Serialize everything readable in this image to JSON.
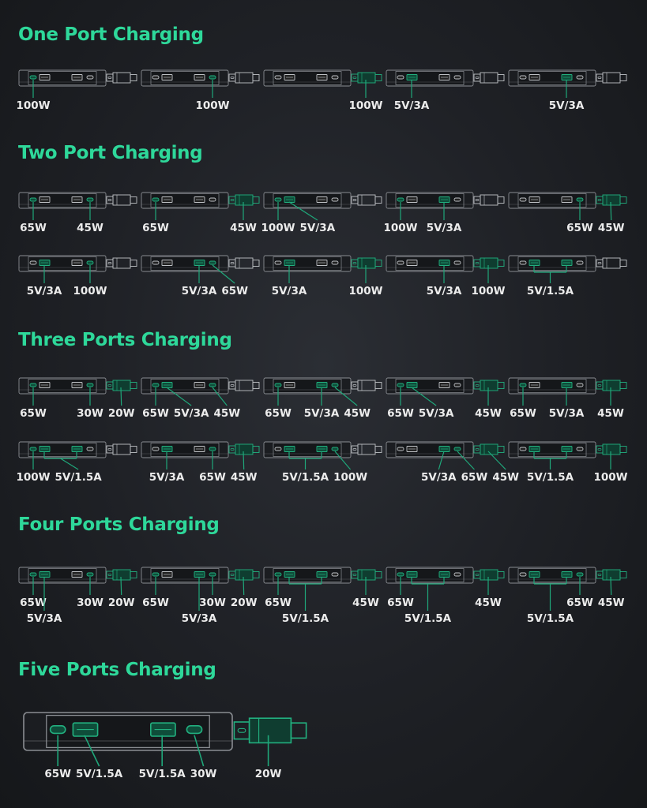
{
  "colors": {
    "title": "#2ed89a",
    "active_port": "#22b07f",
    "leader_line": "#1fa77a",
    "device_outline": "#8a8d92",
    "label": "#ececec"
  },
  "port_order": [
    "usb-c-1",
    "usb-a-1",
    "usb-a-2",
    "usb-c-2",
    "cable"
  ],
  "sections": [
    {
      "title": "One Port Charging",
      "rows": [
        [
          {
            "active": [
              "usb-c-1"
            ],
            "labels": [
              {
                "text": "100W",
                "ports": [
                  "usb-c-1"
                ]
              }
            ]
          },
          {
            "active": [
              "usb-c-2"
            ],
            "labels": [
              {
                "text": "100W",
                "ports": [
                  "usb-c-2"
                ]
              }
            ]
          },
          {
            "active": [
              "cable"
            ],
            "labels": [
              {
                "text": "100W",
                "ports": [
                  "cable"
                ]
              }
            ]
          },
          {
            "active": [
              "usb-a-1"
            ],
            "labels": [
              {
                "text": "5V/3A",
                "ports": [
                  "usb-a-1"
                ]
              }
            ]
          },
          {
            "active": [
              "usb-a-2"
            ],
            "labels": [
              {
                "text": "5V/3A",
                "ports": [
                  "usb-a-2"
                ]
              }
            ]
          }
        ]
      ]
    },
    {
      "title": "Two Port Charging",
      "rows": [
        [
          {
            "active": [
              "usb-c-1",
              "usb-c-2"
            ],
            "labels": [
              {
                "text": "65W",
                "ports": [
                  "usb-c-1"
                ]
              },
              {
                "text": "45W",
                "ports": [
                  "usb-c-2"
                ]
              }
            ]
          },
          {
            "active": [
              "usb-c-1",
              "cable"
            ],
            "labels": [
              {
                "text": "65W",
                "ports": [
                  "usb-c-1"
                ]
              },
              {
                "text": "45W",
                "ports": [
                  "cable"
                ]
              }
            ]
          },
          {
            "active": [
              "usb-c-1",
              "usb-a-1"
            ],
            "labels": [
              {
                "text": "100W",
                "ports": [
                  "usb-c-1"
                ]
              },
              {
                "text": "5V/3A",
                "ports": [
                  "usb-a-1"
                ]
              }
            ]
          },
          {
            "active": [
              "usb-c-1",
              "usb-a-2"
            ],
            "labels": [
              {
                "text": "100W",
                "ports": [
                  "usb-c-1"
                ]
              },
              {
                "text": "5V/3A",
                "ports": [
                  "usb-a-2"
                ]
              }
            ]
          },
          {
            "active": [
              "usb-c-2",
              "cable"
            ],
            "labels": [
              {
                "text": "65W",
                "ports": [
                  "usb-c-2"
                ]
              },
              {
                "text": "45W",
                "ports": [
                  "cable"
                ]
              }
            ]
          }
        ],
        [
          {
            "active": [
              "usb-a-1",
              "usb-c-2"
            ],
            "labels": [
              {
                "text": "5V/3A",
                "ports": [
                  "usb-a-1"
                ]
              },
              {
                "text": "100W",
                "ports": [
                  "usb-c-2"
                ]
              }
            ]
          },
          {
            "active": [
              "usb-a-2",
              "usb-c-2"
            ],
            "labels": [
              {
                "text": "5V/3A",
                "ports": [
                  "usb-a-2"
                ]
              },
              {
                "text": "65W",
                "ports": [
                  "usb-c-2"
                ]
              }
            ]
          },
          {
            "active": [
              "usb-a-1",
              "cable"
            ],
            "labels": [
              {
                "text": "5V/3A",
                "ports": [
                  "usb-a-1"
                ]
              },
              {
                "text": "100W",
                "ports": [
                  "cable"
                ]
              }
            ]
          },
          {
            "active": [
              "usb-a-2",
              "cable"
            ],
            "labels": [
              {
                "text": "5V/3A",
                "ports": [
                  "usb-a-2"
                ]
              },
              {
                "text": "100W",
                "ports": [
                  "cable"
                ]
              }
            ]
          },
          {
            "active": [
              "usb-a-1",
              "usb-a-2"
            ],
            "labels": [
              {
                "text": "5V/1.5A",
                "ports": [
                  "usb-a-1",
                  "usb-a-2"
                ]
              }
            ]
          }
        ]
      ]
    },
    {
      "title": "Three Ports Charging",
      "rows": [
        [
          {
            "active": [
              "usb-c-1",
              "usb-c-2",
              "cable"
            ],
            "labels": [
              {
                "text": "65W",
                "ports": [
                  "usb-c-1"
                ]
              },
              {
                "text": "30W",
                "ports": [
                  "usb-c-2"
                ]
              },
              {
                "text": "20W",
                "ports": [
                  "cable"
                ]
              }
            ]
          },
          {
            "active": [
              "usb-c-1",
              "usb-a-1",
              "usb-c-2"
            ],
            "labels": [
              {
                "text": "65W",
                "ports": [
                  "usb-c-1"
                ]
              },
              {
                "text": "5V/3A",
                "ports": [
                  "usb-a-1"
                ]
              },
              {
                "text": "45W",
                "ports": [
                  "usb-c-2"
                ]
              }
            ]
          },
          {
            "active": [
              "usb-c-1",
              "usb-a-2",
              "usb-c-2"
            ],
            "labels": [
              {
                "text": "65W",
                "ports": [
                  "usb-c-1"
                ]
              },
              {
                "text": "5V/3A",
                "ports": [
                  "usb-a-2"
                ]
              },
              {
                "text": "45W",
                "ports": [
                  "usb-c-2"
                ]
              }
            ]
          },
          {
            "active": [
              "usb-c-1",
              "usb-a-1",
              "cable"
            ],
            "labels": [
              {
                "text": "65W",
                "ports": [
                  "usb-c-1"
                ]
              },
              {
                "text": "5V/3A",
                "ports": [
                  "usb-a-1"
                ]
              },
              {
                "text": "45W",
                "ports": [
                  "cable"
                ]
              }
            ]
          },
          {
            "active": [
              "usb-c-1",
              "usb-a-2",
              "cable"
            ],
            "labels": [
              {
                "text": "65W",
                "ports": [
                  "usb-c-1"
                ]
              },
              {
                "text": "5V/3A",
                "ports": [
                  "usb-a-2"
                ]
              },
              {
                "text": "45W",
                "ports": [
                  "cable"
                ]
              }
            ]
          }
        ],
        [
          {
            "active": [
              "usb-c-1",
              "usb-a-1",
              "usb-a-2"
            ],
            "labels": [
              {
                "text": "100W",
                "ports": [
                  "usb-c-1"
                ]
              },
              {
                "text": "5V/1.5A",
                "ports": [
                  "usb-a-1",
                  "usb-a-2"
                ]
              }
            ]
          },
          {
            "active": [
              "usb-a-1",
              "usb-c-2",
              "cable"
            ],
            "labels": [
              {
                "text": "5V/3A",
                "ports": [
                  "usb-a-1"
                ]
              },
              {
                "text": "65W",
                "ports": [
                  "usb-c-2"
                ]
              },
              {
                "text": "45W",
                "ports": [
                  "cable"
                ]
              }
            ]
          },
          {
            "active": [
              "usb-a-1",
              "usb-a-2",
              "usb-c-2"
            ],
            "labels": [
              {
                "text": "5V/1.5A",
                "ports": [
                  "usb-a-1",
                  "usb-a-2"
                ]
              },
              {
                "text": "100W",
                "ports": [
                  "usb-c-2"
                ]
              }
            ]
          },
          {
            "active": [
              "usb-a-2",
              "usb-c-2",
              "cable"
            ],
            "labels": [
              {
                "text": "5V/3A",
                "ports": [
                  "usb-a-2"
                ]
              },
              {
                "text": "65W",
                "ports": [
                  "usb-c-2"
                ]
              },
              {
                "text": "45W",
                "ports": [
                  "cable"
                ]
              }
            ]
          },
          {
            "active": [
              "usb-a-1",
              "usb-a-2",
              "cable"
            ],
            "labels": [
              {
                "text": "5V/1.5A",
                "ports": [
                  "usb-a-1",
                  "usb-a-2"
                ]
              },
              {
                "text": "100W",
                "ports": [
                  "cable"
                ]
              }
            ]
          }
        ]
      ]
    },
    {
      "title": "Four Ports Charging",
      "rows": [
        [
          {
            "active": [
              "usb-c-1",
              "usb-a-1",
              "usb-c-2",
              "cable"
            ],
            "labels": [
              {
                "text": "65W",
                "ports": [
                  "usb-c-1"
                ]
              },
              {
                "text": "5V/3A",
                "ports": [
                  "usb-a-1"
                ]
              },
              {
                "text": "30W",
                "ports": [
                  "usb-c-2"
                ]
              },
              {
                "text": "20W",
                "ports": [
                  "cable"
                ]
              }
            ]
          },
          {
            "active": [
              "usb-c-1",
              "usb-a-2",
              "usb-c-2",
              "cable"
            ],
            "labels": [
              {
                "text": "65W",
                "ports": [
                  "usb-c-1"
                ]
              },
              {
                "text": "5V/3A",
                "ports": [
                  "usb-a-2"
                ]
              },
              {
                "text": "30W",
                "ports": [
                  "usb-c-2"
                ]
              },
              {
                "text": "20W",
                "ports": [
                  "cable"
                ]
              }
            ]
          },
          {
            "active": [
              "usb-c-1",
              "usb-a-1",
              "usb-a-2",
              "cable"
            ],
            "labels": [
              {
                "text": "65W",
                "ports": [
                  "usb-c-1"
                ]
              },
              {
                "text": "5V/1.5A",
                "ports": [
                  "usb-a-1",
                  "usb-a-2"
                ]
              },
              {
                "text": "45W",
                "ports": [
                  "cable"
                ]
              }
            ]
          },
          {
            "active": [
              "usb-c-1",
              "usb-a-1",
              "usb-a-2",
              "cable"
            ],
            "labels": [
              {
                "text": "65W",
                "ports": [
                  "usb-c-1"
                ]
              },
              {
                "text": "5V/1.5A",
                "ports": [
                  "usb-a-1",
                  "usb-a-2"
                ]
              },
              {
                "text": "45W",
                "ports": [
                  "cable"
                ]
              }
            ]
          },
          {
            "active": [
              "usb-a-1",
              "usb-a-2",
              "usb-c-2",
              "cable"
            ],
            "labels": [
              {
                "text": "5V/1.5A",
                "ports": [
                  "usb-a-1",
                  "usb-a-2"
                ]
              },
              {
                "text": "65W",
                "ports": [
                  "usb-c-2"
                ]
              },
              {
                "text": "45W",
                "ports": [
                  "cable"
                ]
              }
            ]
          }
        ]
      ]
    },
    {
      "title": "Five Ports Charging",
      "rows": [
        [
          {
            "active": [
              "usb-c-1",
              "usb-a-1",
              "usb-a-2",
              "usb-c-2",
              "cable"
            ],
            "labels": [
              {
                "text": "65W",
                "ports": [
                  "usb-c-1"
                ]
              },
              {
                "text": "5V/1.5A",
                "ports": [
                  "usb-a-1"
                ]
              },
              {
                "text": "5V/1.5A",
                "ports": [
                  "usb-a-2"
                ]
              },
              {
                "text": "30W",
                "ports": [
                  "usb-c-2"
                ]
              },
              {
                "text": "20W",
                "ports": [
                  "cable"
                ]
              }
            ]
          }
        ]
      ]
    }
  ]
}
